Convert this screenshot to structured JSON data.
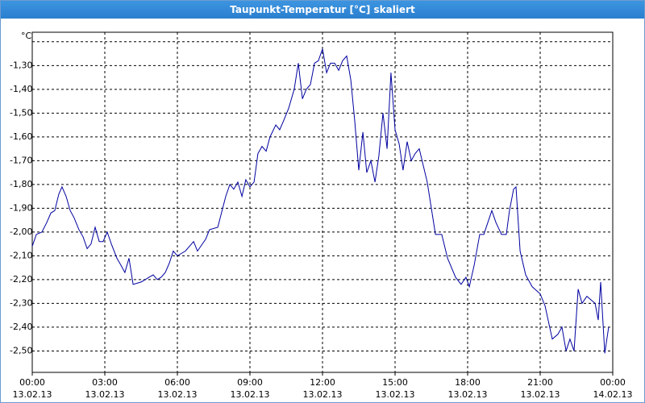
{
  "chart_data": {
    "type": "line",
    "title": "Taupunkt-Temperatur [°C] skaliert",
    "x": [
      0,
      0.17,
      0.4,
      0.6,
      0.77,
      0.93,
      1.1,
      1.23,
      1.4,
      1.57,
      1.73,
      1.93,
      2.1,
      2.27,
      2.43,
      2.6,
      2.77,
      2.93,
      3.1,
      3.27,
      3.5,
      3.67,
      3.83,
      4.0,
      4.17,
      4.5,
      4.67,
      4.83,
      5.0,
      5.17,
      5.33,
      5.5,
      5.67,
      5.83,
      6.0,
      6.33,
      6.67,
      6.83,
      7.17,
      7.33,
      7.67,
      8.0,
      8.17,
      8.33,
      8.5,
      8.67,
      8.83,
      9.0,
      9.17,
      9.33,
      9.5,
      9.67,
      9.83,
      10.07,
      10.23,
      10.4,
      10.6,
      10.83,
      11.0,
      11.17,
      11.33,
      11.5,
      11.67,
      11.83,
      12.0,
      12.17,
      12.33,
      12.5,
      12.67,
      12.83,
      13.0,
      13.17,
      13.33,
      13.5,
      13.67,
      13.83,
      14.0,
      14.17,
      14.33,
      14.5,
      14.67,
      14.83,
      15.0,
      15.17,
      15.33,
      15.5,
      15.67,
      15.83,
      16.0,
      16.33,
      16.67,
      16.93,
      17.17,
      17.5,
      17.73,
      17.93,
      18.07,
      18.27,
      18.5,
      18.67,
      19.0,
      19.17,
      19.4,
      19.6,
      19.73,
      19.9,
      20.0,
      20.17,
      20.4,
      20.67,
      21.0,
      21.2,
      21.5,
      21.73,
      21.9,
      22.07,
      22.23,
      22.4,
      22.57,
      22.73,
      22.93,
      23.27,
      23.4,
      23.5,
      23.67,
      23.83
    ],
    "series": [
      {
        "color": "#0000a0",
        "values": [
          -2.06,
          -2.01,
          -2.0,
          -1.96,
          -1.92,
          -1.91,
          -1.84,
          -1.81,
          -1.85,
          -1.91,
          -1.94,
          -1.99,
          -2.02,
          -2.07,
          -2.05,
          -1.98,
          -2.04,
          -2.04,
          -2.0,
          -2.05,
          -2.11,
          -2.14,
          -2.17,
          -2.11,
          -2.22,
          -2.21,
          -2.2,
          -2.19,
          -2.18,
          -2.2,
          -2.19,
          -2.17,
          -2.13,
          -2.08,
          -2.1,
          -2.08,
          -2.04,
          -2.08,
          -2.03,
          -1.99,
          -1.98,
          -1.85,
          -1.8,
          -1.82,
          -1.79,
          -1.85,
          -1.78,
          -1.81,
          -1.79,
          -1.67,
          -1.64,
          -1.66,
          -1.6,
          -1.55,
          -1.57,
          -1.53,
          -1.48,
          -1.4,
          -1.29,
          -1.44,
          -1.4,
          -1.38,
          -1.29,
          -1.28,
          -1.23,
          -1.33,
          -1.29,
          -1.29,
          -1.32,
          -1.28,
          -1.26,
          -1.36,
          -1.53,
          -1.74,
          -1.58,
          -1.75,
          -1.7,
          -1.79,
          -1.68,
          -1.5,
          -1.65,
          -1.33,
          -1.57,
          -1.63,
          -1.74,
          -1.62,
          -1.7,
          -1.67,
          -1.65,
          -1.79,
          -2.01,
          -2.01,
          -2.11,
          -2.19,
          -2.22,
          -2.19,
          -2.23,
          -2.14,
          -2.01,
          -2.01,
          -1.91,
          -1.96,
          -2.01,
          -2.01,
          -1.91,
          -1.82,
          -1.81,
          -2.08,
          -2.18,
          -2.23,
          -2.26,
          -2.31,
          -2.45,
          -2.43,
          -2.4,
          -2.5,
          -2.45,
          -2.5,
          -2.24,
          -2.3,
          -2.27,
          -2.3,
          -2.37,
          -2.21,
          -2.51,
          -2.4
        ]
      }
    ],
    "xlim": [
      0,
      24
    ],
    "xticks": [
      {
        "value": 0,
        "label": "00:00"
      },
      {
        "value": 3,
        "label": "03:00"
      },
      {
        "value": 6,
        "label": "06:00"
      },
      {
        "value": 9,
        "label": "09:00"
      },
      {
        "value": 12,
        "label": "12:00"
      },
      {
        "value": 15,
        "label": "15:00"
      },
      {
        "value": 18,
        "label": "18:00"
      },
      {
        "value": 21,
        "label": "21:00"
      },
      {
        "value": 24,
        "label": "00:00"
      }
    ],
    "xtick_dates": [
      "13.02.13",
      "13.02.13",
      "13.02.13",
      "13.02.13",
      "13.02.13",
      "13.02.13",
      "13.02.13",
      "13.02.13",
      "14.02.13"
    ],
    "ylim": [
      -2.59,
      -1.16
    ],
    "yticks": [
      {
        "value": -1.2,
        "label": "°C"
      },
      {
        "value": -1.3,
        "label": "-1,30"
      },
      {
        "value": -1.4,
        "label": "-1,40"
      },
      {
        "value": -1.5,
        "label": "-1,50"
      },
      {
        "value": -1.6,
        "label": "-1,60"
      },
      {
        "value": -1.7,
        "label": "-1,70"
      },
      {
        "value": -1.8,
        "label": "-1,80"
      },
      {
        "value": -1.9,
        "label": "-1,90"
      },
      {
        "value": -2.0,
        "label": "-2,00"
      },
      {
        "value": -2.1,
        "label": "-2,10"
      },
      {
        "value": -2.2,
        "label": "-2,20"
      },
      {
        "value": -2.3,
        "label": "-2,30"
      },
      {
        "value": -2.4,
        "label": "-2,40"
      },
      {
        "value": -2.5,
        "label": "-2,50"
      }
    ],
    "grid": true
  }
}
